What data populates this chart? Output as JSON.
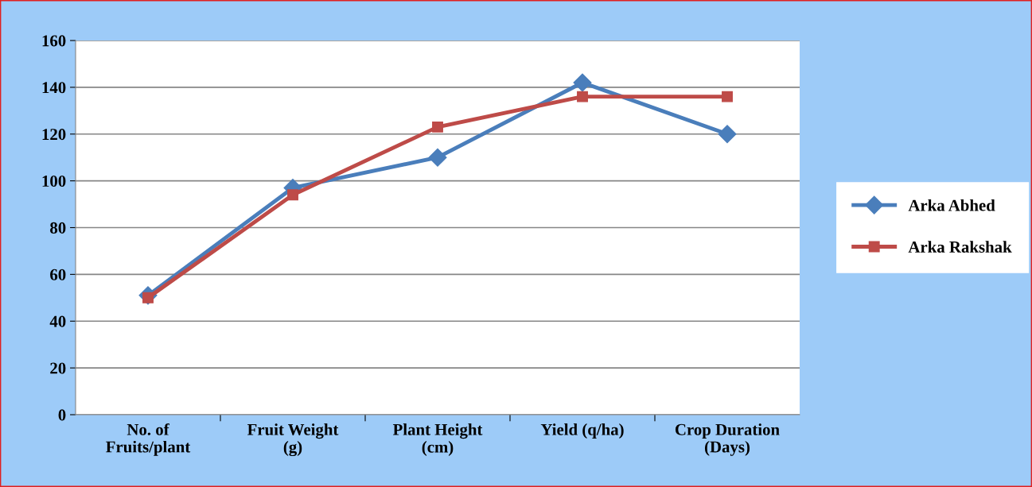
{
  "chart_data": {
    "type": "line",
    "categories": [
      "No. of\nFruits/plant",
      "Fruit Weight\n(g)",
      "Plant Height\n(cm)",
      "Yield (q/ha)",
      "Crop Duration\n(Days)"
    ],
    "series": [
      {
        "name": "Arka Abhed",
        "color": "#4a7ebb",
        "marker": "diamond",
        "values": [
          51,
          97,
          110,
          142,
          120
        ]
      },
      {
        "name": "Arka Rakshak",
        "color": "#be4b48",
        "marker": "square",
        "values": [
          50,
          94,
          123,
          136,
          136
        ]
      }
    ],
    "ylim": [
      0,
      160
    ],
    "yticks": [
      0,
      20,
      40,
      60,
      80,
      100,
      120,
      140,
      160
    ],
    "grid": "y",
    "legend": "right",
    "line_style": "solid"
  }
}
